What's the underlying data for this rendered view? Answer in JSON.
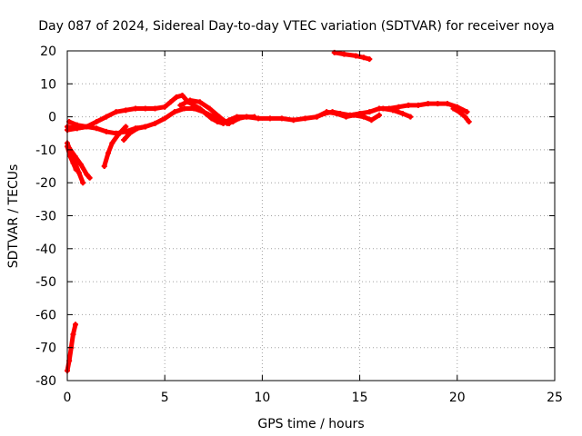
{
  "chart_data": {
    "type": "line",
    "title": "Day 087 of 2024, Sidereal Day-to-day VTEC variation (SDTVAR) for receiver noya",
    "xlabel": "GPS time / hours",
    "ylabel": "SDTVAR / TECUs",
    "xlim": [
      0,
      25
    ],
    "ylim": [
      -80,
      20
    ],
    "xticks": [
      0,
      5,
      10,
      15,
      20,
      25
    ],
    "yticks": [
      -80,
      -70,
      -60,
      -50,
      -40,
      -30,
      -20,
      -10,
      0,
      10,
      20
    ],
    "grid": true,
    "color": "#ff0000",
    "series": [
      {
        "name": "arc-1",
        "points": [
          [
            0.0,
            -3
          ],
          [
            0.5,
            -3.5
          ],
          [
            1.0,
            -3
          ],
          [
            1.5,
            -1.5
          ],
          [
            2.0,
            0
          ],
          [
            2.5,
            1.5
          ],
          [
            3.0,
            2
          ],
          [
            3.5,
            2.5
          ],
          [
            4.0,
            2.5
          ],
          [
            4.5,
            2.5
          ],
          [
            5.0,
            3
          ],
          [
            5.3,
            4.5
          ],
          [
            5.6,
            6
          ],
          [
            5.9,
            6.5
          ],
          [
            6.2,
            4.5
          ],
          [
            6.5,
            3.5
          ],
          [
            6.8,
            2.5
          ],
          [
            7.1,
            1
          ],
          [
            7.4,
            -0.5
          ],
          [
            7.7,
            -1.5
          ],
          [
            8.0,
            -2
          ]
        ]
      },
      {
        "name": "arc-2",
        "points": [
          [
            0.0,
            -4
          ],
          [
            0.5,
            -3.5
          ],
          [
            1.0,
            -3
          ],
          [
            1.5,
            -3.5
          ],
          [
            2.0,
            -4.5
          ],
          [
            2.5,
            -5
          ],
          [
            3.0,
            -4.5
          ],
          [
            3.5,
            -3.5
          ],
          [
            4.0,
            -3
          ],
          [
            4.5,
            -2
          ],
          [
            5.0,
            -0.5
          ],
          [
            5.5,
            1.5
          ],
          [
            6.0,
            2.5
          ],
          [
            6.5,
            2.5
          ],
          [
            7.0,
            1.5
          ],
          [
            7.5,
            0
          ],
          [
            8.0,
            -1
          ],
          [
            8.3,
            -2
          ]
        ]
      },
      {
        "name": "arc-3",
        "points": [
          [
            0.1,
            -1.5
          ],
          [
            0.5,
            -2.5
          ],
          [
            1.0,
            -3
          ]
        ]
      },
      {
        "name": "arc-4",
        "points": [
          [
            5.8,
            3.5
          ],
          [
            6.3,
            5
          ],
          [
            6.8,
            4.5
          ],
          [
            7.3,
            2.5
          ],
          [
            7.8,
            0
          ],
          [
            8.2,
            -2
          ],
          [
            8.5,
            -1.5
          ],
          [
            8.8,
            -0.5
          ],
          [
            9.2,
            0
          ],
          [
            9.8,
            -0.5
          ],
          [
            10.4,
            -0.5
          ],
          [
            11.0,
            -0.5
          ],
          [
            11.6,
            -1
          ],
          [
            12.2,
            -0.5
          ],
          [
            12.8,
            0
          ],
          [
            13.2,
            1
          ],
          [
            13.6,
            1.5
          ],
          [
            14.0,
            1
          ],
          [
            14.5,
            0.5
          ],
          [
            15.0,
            1
          ],
          [
            15.5,
            1.5
          ],
          [
            16.0,
            2.5
          ],
          [
            16.5,
            2.5
          ],
          [
            17.0,
            3
          ],
          [
            17.5,
            3.5
          ],
          [
            18.0,
            3.5
          ],
          [
            18.5,
            4
          ],
          [
            19.0,
            4
          ],
          [
            19.5,
            4
          ],
          [
            20.0,
            3
          ],
          [
            20.5,
            1.5
          ]
        ]
      },
      {
        "name": "arc-5",
        "points": [
          [
            8.0,
            -2
          ],
          [
            8.3,
            -1
          ],
          [
            8.7,
            0
          ],
          [
            9.2,
            0
          ],
          [
            9.6,
            0
          ]
        ]
      },
      {
        "name": "arc-6",
        "points": [
          [
            12.8,
            0
          ],
          [
            13.3,
            1.5
          ],
          [
            13.8,
            1
          ],
          [
            14.3,
            0
          ],
          [
            14.7,
            0.5
          ],
          [
            15.2,
            0
          ],
          [
            15.6,
            -1
          ],
          [
            16.0,
            0.5
          ]
        ]
      },
      {
        "name": "arc-7",
        "points": [
          [
            16.2,
            2.5
          ],
          [
            16.7,
            2
          ],
          [
            17.2,
            1
          ],
          [
            17.6,
            0
          ]
        ]
      },
      {
        "name": "arc-8",
        "points": [
          [
            19.8,
            2.5
          ],
          [
            20.1,
            1.5
          ],
          [
            20.4,
            0
          ],
          [
            20.6,
            -1.5
          ]
        ]
      },
      {
        "name": "arc-9",
        "points": [
          [
            13.7,
            19.5
          ],
          [
            14.2,
            19
          ],
          [
            14.8,
            18.5
          ],
          [
            15.2,
            18
          ],
          [
            15.5,
            17.5
          ]
        ]
      },
      {
        "name": "arc-10",
        "points": [
          [
            0.0,
            -8
          ],
          [
            0.2,
            -11
          ],
          [
            0.4,
            -14
          ],
          [
            0.6,
            -17
          ],
          [
            0.8,
            -20
          ]
        ]
      },
      {
        "name": "arc-11",
        "points": [
          [
            0.1,
            -9.5
          ],
          [
            0.4,
            -12
          ],
          [
            0.7,
            -14.5
          ],
          [
            1.0,
            -17.5
          ],
          [
            1.15,
            -18.5
          ]
        ]
      },
      {
        "name": "arc-12",
        "points": [
          [
            0.0,
            -9
          ],
          [
            0.15,
            -12
          ],
          [
            0.3,
            -14
          ],
          [
            0.45,
            -16
          ]
        ]
      },
      {
        "name": "arc-13",
        "points": [
          [
            1.9,
            -15
          ],
          [
            2.1,
            -11
          ],
          [
            2.3,
            -8
          ],
          [
            2.6,
            -5.5
          ],
          [
            3.0,
            -3
          ]
        ]
      },
      {
        "name": "arc-14",
        "points": [
          [
            2.9,
            -7
          ],
          [
            3.2,
            -5
          ],
          [
            3.6,
            -3.5
          ],
          [
            4.0,
            -3
          ]
        ]
      },
      {
        "name": "arc-15",
        "points": [
          [
            0.0,
            -77
          ],
          [
            0.1,
            -74
          ],
          [
            0.2,
            -70
          ],
          [
            0.3,
            -66
          ],
          [
            0.42,
            -63
          ]
        ]
      }
    ]
  }
}
